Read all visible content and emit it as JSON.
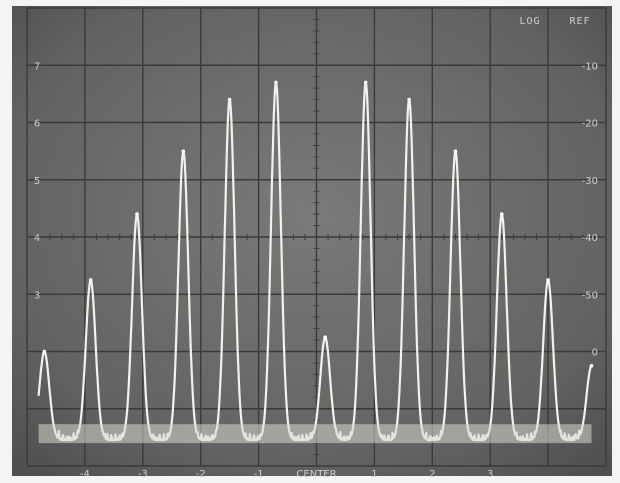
{
  "chart_data": {
    "type": "line",
    "title": "",
    "xlabel": "",
    "ylabel": "",
    "x_tick_labels": [
      "-4",
      "-3",
      "-2",
      "-1",
      "CENTER",
      "1",
      "2",
      "3"
    ],
    "y_tick_labels_left": [
      "7",
      "6",
      "5",
      "4",
      "3"
    ],
    "y_tick_labels_right": [
      "-10",
      "-20",
      "-30",
      "-40",
      "-50",
      "0"
    ],
    "top_right_labels": [
      "LOG",
      "REF"
    ],
    "xlim": [
      -5,
      5
    ],
    "ylim": [
      0,
      8
    ],
    "noise_floor": 0.45,
    "series": [
      {
        "peaks": [
          {
            "x": -4.7,
            "y": 2.0
          },
          {
            "x": -3.9,
            "y": 3.25
          },
          {
            "x": -3.1,
            "y": 4.4
          },
          {
            "x": -2.3,
            "y": 5.5
          },
          {
            "x": -1.5,
            "y": 6.4
          },
          {
            "x": -0.7,
            "y": 6.7
          },
          {
            "x": 0.15,
            "y": 2.25
          },
          {
            "x": 0.85,
            "y": 6.7
          },
          {
            "x": 1.6,
            "y": 6.4
          },
          {
            "x": 2.4,
            "y": 5.5
          },
          {
            "x": 3.2,
            "y": 4.4
          },
          {
            "x": 4.0,
            "y": 3.25
          },
          {
            "x": 4.75,
            "y": 1.75
          }
        ]
      }
    ],
    "grid": true,
    "colors": {
      "screen": "#6b6b6b",
      "trace": "#f2f2ea",
      "grid": "#3a3a3a"
    }
  }
}
